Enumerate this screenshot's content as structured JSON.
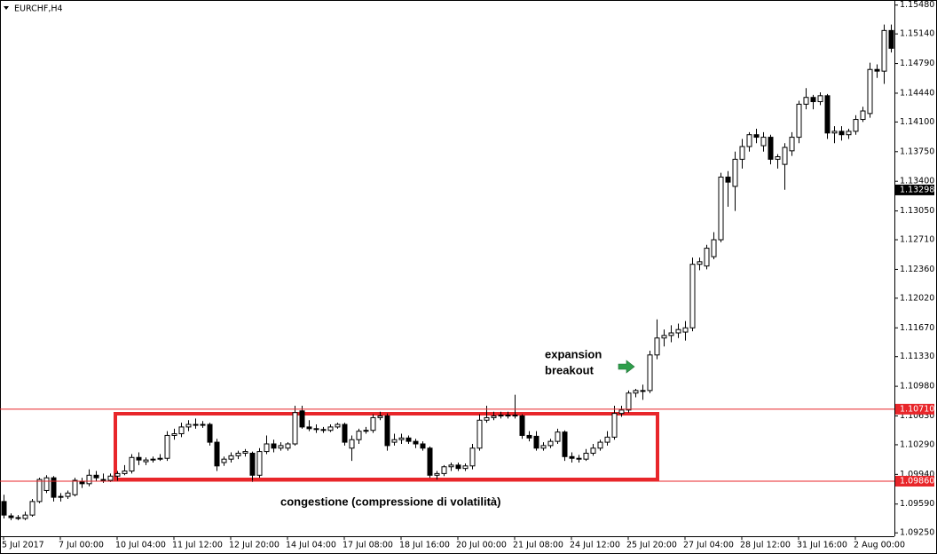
{
  "chart_data": {
    "type": "candlestick",
    "title": "EURCHF,H4",
    "categories": [
      "5 Jul 2017",
      null,
      null,
      null,
      null,
      null,
      null,
      null,
      "7 Jul 00:00",
      null,
      null,
      null,
      null,
      null,
      null,
      null,
      "10 Jul 04:00",
      null,
      null,
      null,
      null,
      null,
      null,
      null,
      "11 Jul 12:00",
      null,
      null,
      null,
      null,
      null,
      null,
      null,
      "12 Jul 20:00",
      null,
      null,
      null,
      null,
      null,
      null,
      null,
      "14 Jul 04:00",
      null,
      null,
      null,
      null,
      null,
      null,
      null,
      "17 Jul 08:00",
      null,
      null,
      null,
      null,
      null,
      null,
      null,
      "18 Jul 16:00",
      null,
      null,
      null,
      null,
      null,
      null,
      null,
      "20 Jul 00:00",
      null,
      null,
      null,
      null,
      null,
      null,
      null,
      "21 Jul 08:00",
      null,
      null,
      null,
      null,
      null,
      null,
      null,
      "24 Jul 12:00",
      null,
      null,
      null,
      null,
      null,
      null,
      null,
      "25 Jul 20:00",
      null,
      null,
      null,
      null,
      null,
      null,
      null,
      "27 Jul 04:00",
      null,
      null,
      null,
      null,
      null,
      null,
      null,
      "28 Jul 12:00",
      null,
      null,
      null,
      null,
      null,
      null,
      null,
      "31 Jul 16:00",
      null,
      null,
      null,
      null,
      null,
      null,
      null,
      "2 Aug 00:00",
      null,
      null,
      null,
      null,
      null
    ],
    "candles": [
      [
        1.0962,
        1.097,
        1.0942,
        1.0946
      ],
      [
        1.0945,
        1.0948,
        1.094,
        1.0943
      ],
      [
        1.0943,
        1.0946,
        1.094,
        1.0942
      ],
      [
        1.0942,
        1.095,
        1.094,
        1.0946
      ],
      [
        1.0946,
        1.0965,
        1.0944,
        1.0962
      ],
      [
        1.0962,
        1.099,
        1.096,
        1.0988
      ],
      [
        1.0975,
        1.0993,
        1.0972,
        1.099
      ],
      [
        1.099,
        1.0992,
        1.0962,
        1.0967
      ],
      [
        1.0967,
        1.0972,
        1.0962,
        1.0968
      ],
      [
        1.0968,
        1.0975,
        1.0965,
        1.0972
      ],
      [
        1.097,
        1.099,
        1.0968,
        1.0987
      ],
      [
        1.0985,
        1.099,
        1.0978,
        1.0983
      ],
      [
        1.0983,
        1.1,
        1.098,
        1.0993
      ],
      [
        1.0993,
        1.0998,
        1.0986,
        1.099
      ],
      [
        1.0988,
        1.0995,
        1.0984,
        1.0987
      ],
      [
        1.0987,
        1.0995,
        1.0985,
        1.0992
      ],
      [
        1.0992,
        1.0998,
        1.0986,
        1.0995
      ],
      [
        1.0995,
        1.1005,
        1.0993,
        1.0998
      ],
      [
        1.0998,
        1.1018,
        1.0995,
        1.1014
      ],
      [
        1.1014,
        1.102,
        1.1005,
        1.1011
      ],
      [
        1.1009,
        1.1014,
        1.1005,
        1.1011
      ],
      [
        1.1011,
        1.1015,
        1.1008,
        1.1012
      ],
      [
        1.1012,
        1.1018,
        1.101,
        1.1013
      ],
      [
        1.1013,
        1.1045,
        1.101,
        1.104
      ],
      [
        1.104,
        1.1048,
        1.1035,
        1.1042
      ],
      [
        1.1042,
        1.1055,
        1.1038,
        1.105
      ],
      [
        1.105,
        1.1058,
        1.1045,
        1.1053
      ],
      [
        1.1053,
        1.106,
        1.1048,
        1.1052
      ],
      [
        1.1052,
        1.1057,
        1.1049,
        1.1053
      ],
      [
        1.1053,
        1.1055,
        1.1028,
        1.1032
      ],
      [
        1.1032,
        1.1036,
        1.0998,
        1.1004
      ],
      [
        1.1008,
        1.1015,
        1.1004,
        1.1012
      ],
      [
        1.1012,
        1.102,
        1.1008,
        1.1016
      ],
      [
        1.1016,
        1.1022,
        1.1012,
        1.1019
      ],
      [
        1.1019,
        1.1024,
        1.1015,
        1.1021
      ],
      [
        1.1019,
        1.1021,
        1.0985,
        1.0993
      ],
      [
        1.0993,
        1.1025,
        1.099,
        1.1021
      ],
      [
        1.1021,
        1.104,
        1.1018,
        1.103
      ],
      [
        1.103,
        1.1035,
        1.102,
        1.1025
      ],
      [
        1.1025,
        1.1032,
        1.1022,
        1.1028
      ],
      [
        1.1025,
        1.1032,
        1.1022,
        1.103
      ],
      [
        1.103,
        1.1075,
        1.1028,
        1.1067
      ],
      [
        1.1069,
        1.1075,
        1.1048,
        1.105
      ],
      [
        1.105,
        1.1058,
        1.1045,
        1.1048
      ],
      [
        1.1048,
        1.1053,
        1.1043,
        1.1047
      ],
      [
        1.1047,
        1.105,
        1.1043,
        1.1046
      ],
      [
        1.1046,
        1.1053,
        1.1044,
        1.105
      ],
      [
        1.105,
        1.1055,
        1.1048,
        1.1053
      ],
      [
        1.1053,
        1.1055,
        1.1028,
        1.1032
      ],
      [
        1.1025,
        1.104,
        1.101,
        1.1035
      ],
      [
        1.1035,
        1.1048,
        1.103,
        1.1045
      ],
      [
        1.1045,
        1.105,
        1.1042,
        1.1046
      ],
      [
        1.1046,
        1.1065,
        1.1043,
        1.1061
      ],
      [
        1.1061,
        1.1068,
        1.1058,
        1.1063
      ],
      [
        1.1063,
        1.1066,
        1.1022,
        1.1028
      ],
      [
        1.1032,
        1.1042,
        1.1028,
        1.1035
      ],
      [
        1.1035,
        1.1042,
        1.103,
        1.1037
      ],
      [
        1.1037,
        1.104,
        1.103,
        1.1033
      ],
      [
        1.1033,
        1.1036,
        1.1025,
        1.103
      ],
      [
        1.103,
        1.1033,
        1.1022,
        1.1025
      ],
      [
        1.1025,
        1.1027,
        1.099,
        1.0993
      ],
      [
        1.0993,
        1.0998,
        1.0988,
        1.0995
      ],
      [
        1.0995,
        1.1005,
        1.0992,
        1.1003
      ],
      [
        1.1003,
        1.1008,
        1.0998,
        1.1005
      ],
      [
        1.1005,
        1.1008,
        1.0998,
        1.1001
      ],
      [
        1.1001,
        1.1007,
        1.0998,
        1.1004
      ],
      [
        1.1004,
        1.103,
        1.1,
        1.1025
      ],
      [
        1.1025,
        1.1065,
        1.1022,
        1.1058
      ],
      [
        1.1058,
        1.1075,
        1.1055,
        1.1061
      ],
      [
        1.1061,
        1.1068,
        1.1058,
        1.1063
      ],
      [
        1.1063,
        1.1068,
        1.106,
        1.1064
      ],
      [
        1.1064,
        1.1068,
        1.106,
        1.1063
      ],
      [
        1.1063,
        1.1088,
        1.106,
        1.1064
      ],
      [
        1.1063,
        1.1065,
        1.1036,
        1.104
      ],
      [
        1.104,
        1.1045,
        1.1033,
        1.1037
      ],
      [
        1.1039,
        1.1045,
        1.1022,
        1.1025
      ],
      [
        1.1025,
        1.1032,
        1.1022,
        1.1028
      ],
      [
        1.1028,
        1.1036,
        1.1025,
        1.1033
      ],
      [
        1.1033,
        1.1048,
        1.103,
        1.1044
      ],
      [
        1.1044,
        1.1046,
        1.101,
        1.1015
      ],
      [
        1.1015,
        1.102,
        1.1008,
        1.1013
      ],
      [
        1.1013,
        1.1017,
        1.1008,
        1.1012
      ],
      [
        1.1012,
        1.1024,
        1.101,
        1.1019
      ],
      [
        1.1019,
        1.103,
        1.1016,
        1.1025
      ],
      [
        1.1025,
        1.1035,
        1.1022,
        1.1032
      ],
      [
        1.1032,
        1.1045,
        1.1028,
        1.1038
      ],
      [
        1.1038,
        1.1075,
        1.1035,
        1.1066
      ],
      [
        1.1066,
        1.1075,
        1.1062,
        1.107
      ],
      [
        1.107,
        1.1093,
        1.1067,
        1.109
      ],
      [
        1.109,
        1.1095,
        1.1085,
        1.1093
      ],
      [
        1.1093,
        1.11,
        1.1082,
        1.1093
      ],
      [
        1.1093,
        1.114,
        1.109,
        1.1135
      ],
      [
        1.1135,
        1.1177,
        1.113,
        1.1155
      ],
      [
        1.1155,
        1.1165,
        1.1145,
        1.1158
      ],
      [
        1.1158,
        1.117,
        1.115,
        1.1161
      ],
      [
        1.1161,
        1.1172,
        1.1155,
        1.1165
      ],
      [
        1.1162,
        1.1175,
        1.1152,
        1.1167
      ],
      [
        1.1167,
        1.125,
        1.1163,
        1.1242
      ],
      [
        1.1242,
        1.125,
        1.1235,
        1.1245
      ],
      [
        1.124,
        1.1265,
        1.1236,
        1.1261
      ],
      [
        1.1251,
        1.128,
        1.1248,
        1.1271
      ],
      [
        1.1271,
        1.135,
        1.1268,
        1.1345
      ],
      [
        1.1345,
        1.1352,
        1.131,
        1.1339
      ],
      [
        1.1334,
        1.1375,
        1.1305,
        1.1366
      ],
      [
        1.1366,
        1.139,
        1.1355,
        1.1381
      ],
      [
        1.1381,
        1.1398,
        1.1375,
        1.1395
      ],
      [
        1.1395,
        1.1402,
        1.1385,
        1.1392
      ],
      [
        1.1382,
        1.1398,
        1.1375,
        1.1392
      ],
      [
        1.1392,
        1.1395,
        1.136,
        1.1366
      ],
      [
        1.1366,
        1.1372,
        1.1355,
        1.1369
      ],
      [
        1.136,
        1.1385,
        1.133,
        1.138
      ],
      [
        1.1376,
        1.1398,
        1.137,
        1.1392
      ],
      [
        1.1392,
        1.1435,
        1.1385,
        1.1431
      ],
      [
        1.1431,
        1.145,
        1.1425,
        1.1439
      ],
      [
        1.1439,
        1.1442,
        1.1425,
        1.1434
      ],
      [
        1.1434,
        1.1445,
        1.143,
        1.1441
      ],
      [
        1.1441,
        1.1443,
        1.139,
        1.1397
      ],
      [
        1.1397,
        1.1405,
        1.1385,
        1.1399
      ],
      [
        1.1399,
        1.1405,
        1.1388,
        1.1395
      ],
      [
        1.1395,
        1.1402,
        1.139,
        1.1399
      ],
      [
        1.1399,
        1.1418,
        1.1395,
        1.1413
      ],
      [
        1.1413,
        1.1428,
        1.141,
        1.1423
      ],
      [
        1.142,
        1.148,
        1.1415,
        1.1472
      ],
      [
        1.1472,
        1.1478,
        1.1462,
        1.147
      ],
      [
        1.147,
        1.1525,
        1.1455,
        1.1518
      ],
      [
        1.1518,
        1.1525,
        1.1492,
        1.1497
      ]
    ],
    "ylim": [
      1.0921,
      1.1554
    ],
    "yticks": [
      {
        "value": 1.1548,
        "label": "1.15480"
      },
      {
        "value": 1.1514,
        "label": "1.15140"
      },
      {
        "value": 1.1479,
        "label": "1.14790"
      },
      {
        "value": 1.1444,
        "label": "1.14440"
      },
      {
        "value": 1.141,
        "label": "1.14100"
      },
      {
        "value": 1.1375,
        "label": "1.13750"
      },
      {
        "value": 1.134,
        "label": "1.13400"
      },
      {
        "value": 1.1305,
        "label": "1.13050"
      },
      {
        "value": 1.1271,
        "label": "1.12710"
      },
      {
        "value": 1.1236,
        "label": "1.12360"
      },
      {
        "value": 1.1202,
        "label": "1.12020"
      },
      {
        "value": 1.1167,
        "label": "1.11670"
      },
      {
        "value": 1.1133,
        "label": "1.11330"
      },
      {
        "value": 1.1098,
        "label": "1.10980"
      },
      {
        "value": 1.1063,
        "label": "1.10630"
      },
      {
        "value": 1.1029,
        "label": "1.10290"
      },
      {
        "value": 1.0994,
        "label": "1.09940"
      },
      {
        "value": 1.0959,
        "label": "1.09590"
      },
      {
        "value": 1.0925,
        "label": "1.09250"
      }
    ],
    "levels": [
      {
        "value": 1.1071,
        "label": "1.10710"
      },
      {
        "value": 1.0986,
        "label": "1.09860"
      }
    ],
    "current_price": 1.13298,
    "colors": {
      "up": "#ffffff",
      "down": "#000000",
      "level": "#e8262a",
      "price_tag": "#000000"
    },
    "annotations": [
      "expansion",
      "breakout",
      "congestione (compressione di volatilità)"
    ]
  }
}
